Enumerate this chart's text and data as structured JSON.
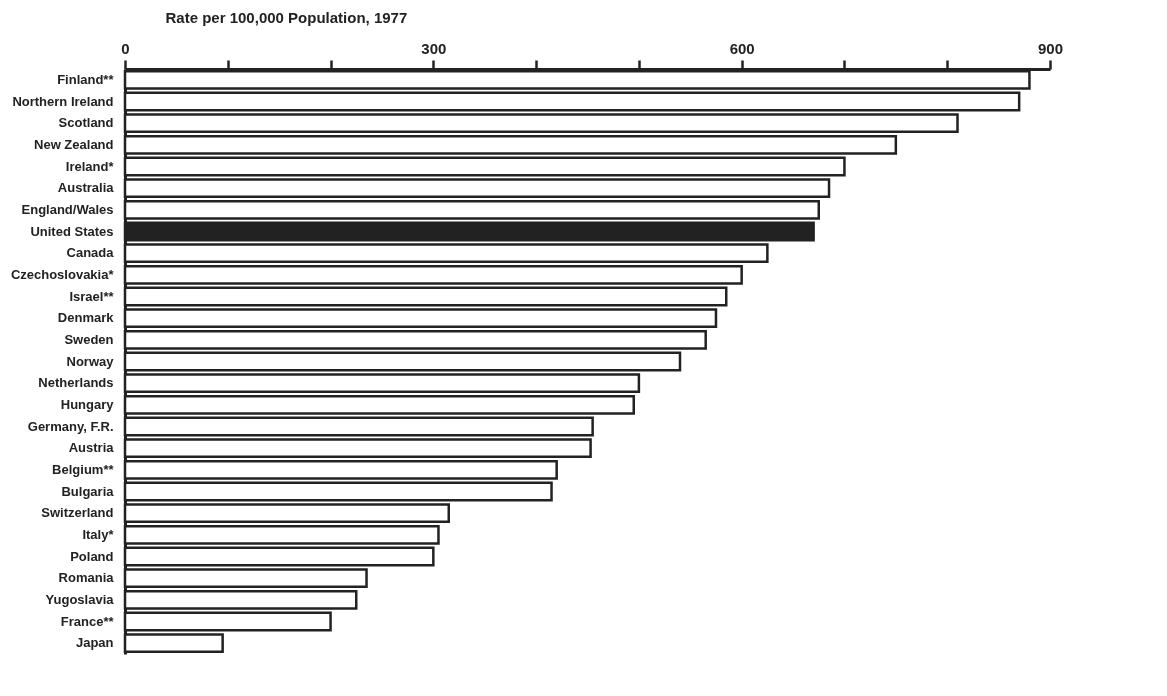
{
  "chart_data": {
    "type": "bar",
    "orientation": "horizontal",
    "xlabel": "Rate per 100,000 Population, 1977",
    "categories": [
      "Finland**",
      "Northern Ireland",
      "Scotland",
      "New Zealand",
      "Ireland*",
      "Australia",
      "England/Wales",
      "United States",
      "Canada",
      "Czechoslovakia*",
      "Israel**",
      "Denmark",
      "Sweden",
      "Norway",
      "Netherlands",
      "Hungary",
      "Germany, F.R.",
      "Austria",
      "Belgium**",
      "Bulgaria",
      "Switzerland",
      "Italy*",
      "Poland",
      "Romania",
      "Yugoslavia",
      "France**",
      "Japan"
    ],
    "values": [
      880,
      870,
      810,
      750,
      700,
      685,
      675,
      670,
      625,
      600,
      585,
      575,
      565,
      540,
      500,
      495,
      455,
      453,
      420,
      415,
      315,
      305,
      300,
      235,
      225,
      200,
      95
    ],
    "colors": [
      "#ffffff",
      "#ffffff",
      "#ffffff",
      "#ffffff",
      "#ffffff",
      "#ffffff",
      "#ffffff",
      "#222222",
      "#ffffff",
      "#ffffff",
      "#ffffff",
      "#ffffff",
      "#ffffff",
      "#ffffff",
      "#ffffff",
      "#ffffff",
      "#ffffff",
      "#ffffff",
      "#ffffff",
      "#ffffff",
      "#ffffff",
      "#ffffff",
      "#ffffff",
      "#ffffff",
      "#ffffff",
      "#ffffff",
      "#ffffff"
    ],
    "xlim": [
      0,
      900
    ],
    "xticks": [
      0,
      {
        "value": 100,
        "label": null
      },
      {
        "value": 200,
        "label": null
      },
      300,
      {
        "value": 400,
        "label": null
      },
      {
        "value": 500,
        "label": null
      },
      600,
      {
        "value": 700,
        "label": null
      },
      {
        "value": 800,
        "label": null
      },
      900
    ],
    "grid": false,
    "legend": false
  }
}
